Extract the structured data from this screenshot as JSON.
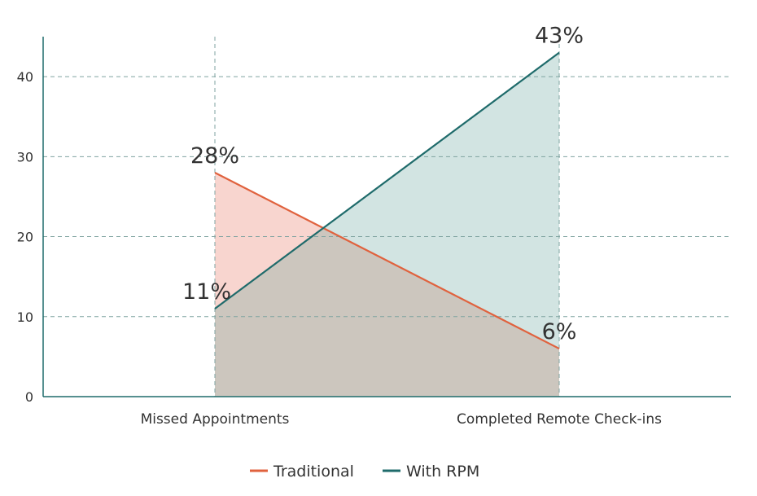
{
  "chart_data": {
    "type": "area",
    "categories": [
      "Missed Appointments",
      "Completed Remote Check-ins"
    ],
    "series": [
      {
        "name": "Traditional",
        "values": [
          28,
          6
        ],
        "labels": [
          "28%",
          "6%"
        ],
        "color": "#e0623e",
        "fill": "#f8d5cf"
      },
      {
        "name": "With RPM",
        "values": [
          11,
          43
        ],
        "labels": [
          "11%",
          "43%"
        ],
        "color": "#1f6b6b",
        "fill": "#d2e4e2"
      }
    ],
    "overlap_fill": "#ccc6be",
    "yticks": [
      0,
      10,
      20,
      30,
      40
    ],
    "ylim": [
      0,
      45
    ],
    "grid": true,
    "legend": "bottom",
    "title": "",
    "xlabel": "",
    "ylabel": ""
  }
}
